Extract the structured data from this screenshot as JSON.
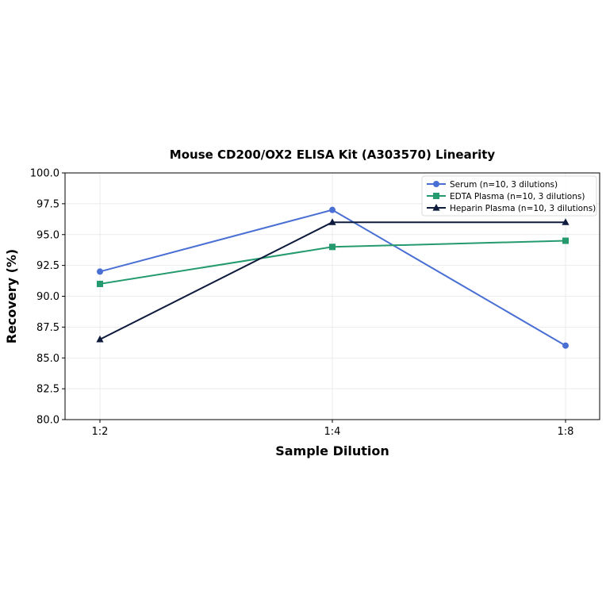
{
  "chart_data": {
    "type": "line",
    "title": "Mouse CD200/OX2 ELISA Kit (A303570) Linearity",
    "xlabel": "Sample Dilution",
    "ylabel": "Recovery (%)",
    "categories": [
      "1:2",
      "1:4",
      "1:8"
    ],
    "ylim": [
      80.0,
      100.0
    ],
    "yticks": [
      "80.0",
      "82.5",
      "85.0",
      "87.5",
      "90.0",
      "92.5",
      "95.0",
      "97.5",
      "100.0"
    ],
    "grid": true,
    "legend_position": "top-right",
    "series": [
      {
        "name": "Serum (n=10, 3 dilutions)",
        "values": [
          92.0,
          97.0,
          86.0
        ],
        "color": "#4a6fd4",
        "marker": "circle"
      },
      {
        "name": "EDTA Plasma (n=10, 3 dilutions)",
        "values": [
          91.0,
          94.0,
          94.5
        ],
        "color": "#249a6e",
        "marker": "square"
      },
      {
        "name": "Heparin Plasma (n=10, 3 dilutions)",
        "values": [
          86.5,
          96.0,
          96.0
        ],
        "color": "#0f1b3d",
        "marker": "triangle"
      }
    ]
  }
}
